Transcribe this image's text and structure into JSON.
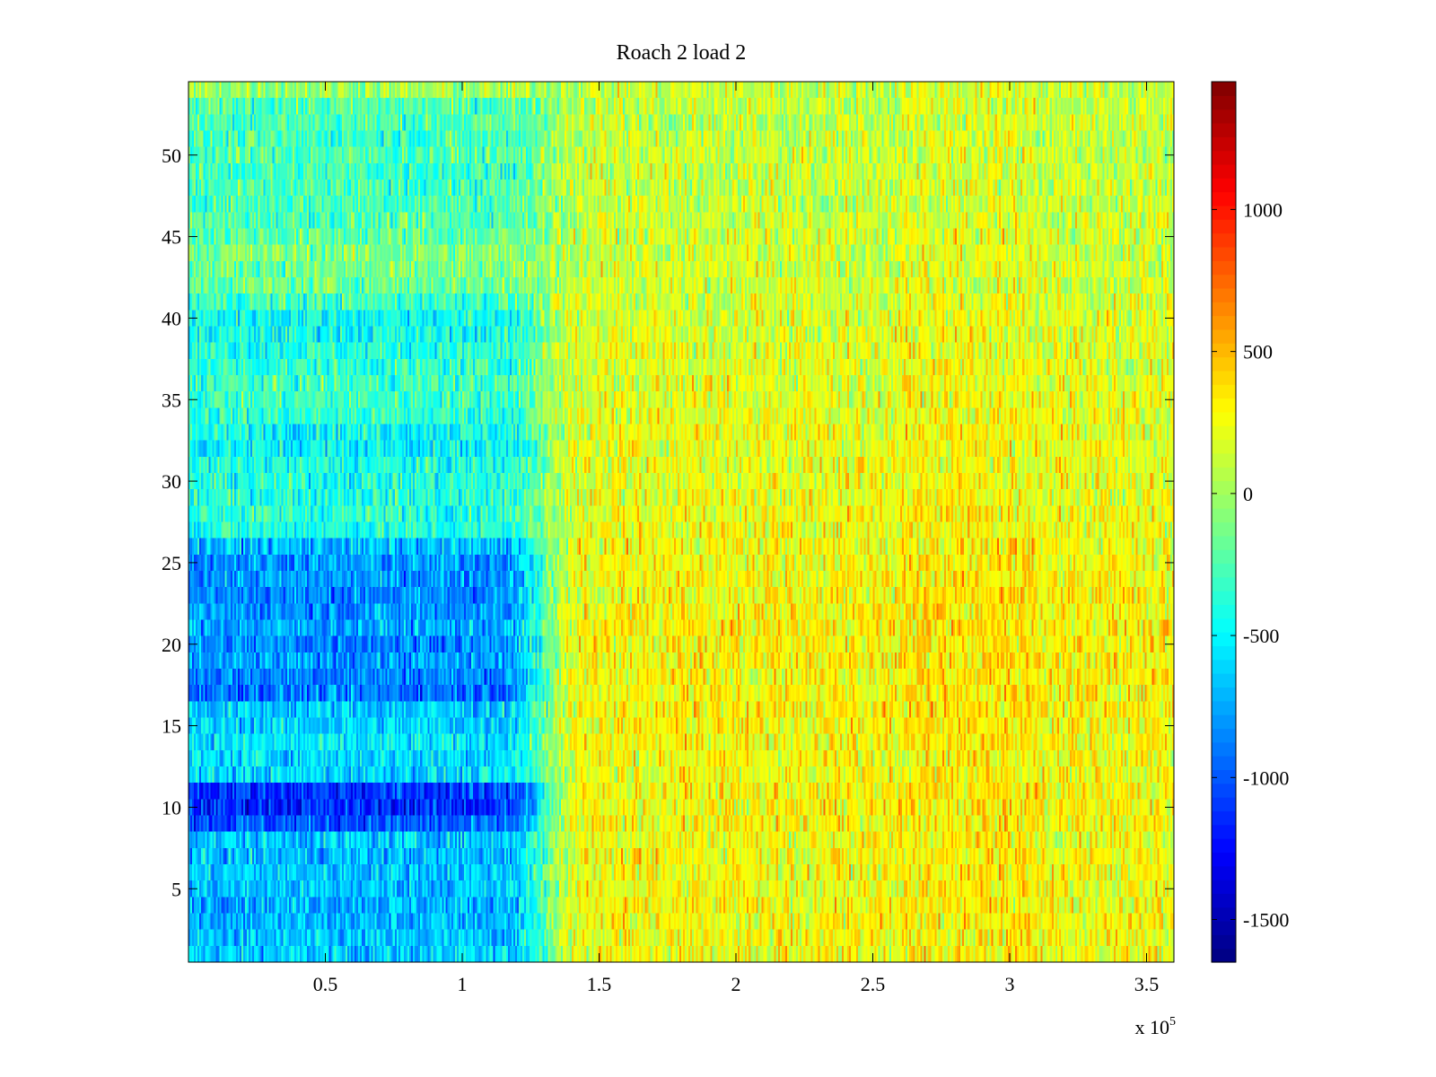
{
  "chart_data": {
    "type": "heatmap",
    "title": "Roach 2 load 2",
    "xlabel": "",
    "ylabel": "",
    "x_exponent_label": "x 10",
    "x_exponent": "5",
    "xlim": [
      0,
      3.6
    ],
    "ylim": [
      0.5,
      54.5
    ],
    "x_ticks": [
      0.5,
      1,
      1.5,
      2,
      2.5,
      3,
      3.5
    ],
    "x_tick_labels": [
      "0.5",
      "1",
      "1.5",
      "2",
      "2.5",
      "3",
      "3.5"
    ],
    "y_ticks": [
      5,
      10,
      15,
      20,
      25,
      30,
      35,
      40,
      45,
      50
    ],
    "y_tick_labels": [
      "5",
      "10",
      "15",
      "20",
      "25",
      "30",
      "35",
      "40",
      "45",
      "50"
    ],
    "n_rows": 54,
    "transition_x": 1.3,
    "colormap": "jet",
    "colorbar": {
      "clim": [
        -1650,
        1450
      ],
      "ticks": [
        -1500,
        -1000,
        -500,
        0,
        500,
        1000
      ],
      "tick_labels": [
        "-1500",
        "-1000",
        "-500",
        "0",
        "500",
        "1000"
      ]
    },
    "row_profile": {
      "rows": [
        1,
        2,
        3,
        4,
        5,
        6,
        7,
        8,
        9,
        10,
        11,
        12,
        13,
        14,
        15,
        16,
        17,
        18,
        19,
        20,
        21,
        22,
        23,
        24,
        25,
        26,
        27,
        28,
        29,
        30,
        31,
        32,
        33,
        34,
        35,
        36,
        37,
        38,
        39,
        40,
        41,
        42,
        43,
        44,
        45,
        46,
        47,
        48,
        49,
        50,
        51,
        52,
        53,
        54
      ],
      "mean_left_region": [
        -650,
        -700,
        -720,
        -700,
        -680,
        -650,
        -700,
        -650,
        -1000,
        -1150,
        -1100,
        -600,
        -580,
        -560,
        -620,
        -650,
        -900,
        -850,
        -800,
        -850,
        -750,
        -800,
        -850,
        -800,
        -800,
        -700,
        -400,
        -350,
        -380,
        -400,
        -420,
        -500,
        -450,
        -350,
        -300,
        -300,
        -350,
        -380,
        -450,
        -450,
        -300,
        -150,
        -150,
        -100,
        -200,
        -250,
        -250,
        -300,
        -300,
        -250,
        -300,
        -250,
        -250,
        0
      ],
      "mean_right_region": [
        250,
        260,
        270,
        260,
        250,
        260,
        270,
        260,
        280,
        290,
        280,
        260,
        270,
        280,
        290,
        300,
        290,
        300,
        310,
        300,
        310,
        300,
        290,
        280,
        270,
        260,
        250,
        240,
        230,
        220,
        220,
        230,
        220,
        210,
        200,
        200,
        200,
        190,
        180,
        170,
        160,
        150,
        150,
        140,
        140,
        130,
        120,
        120,
        120,
        110,
        110,
        100,
        100,
        120
      ]
    }
  }
}
